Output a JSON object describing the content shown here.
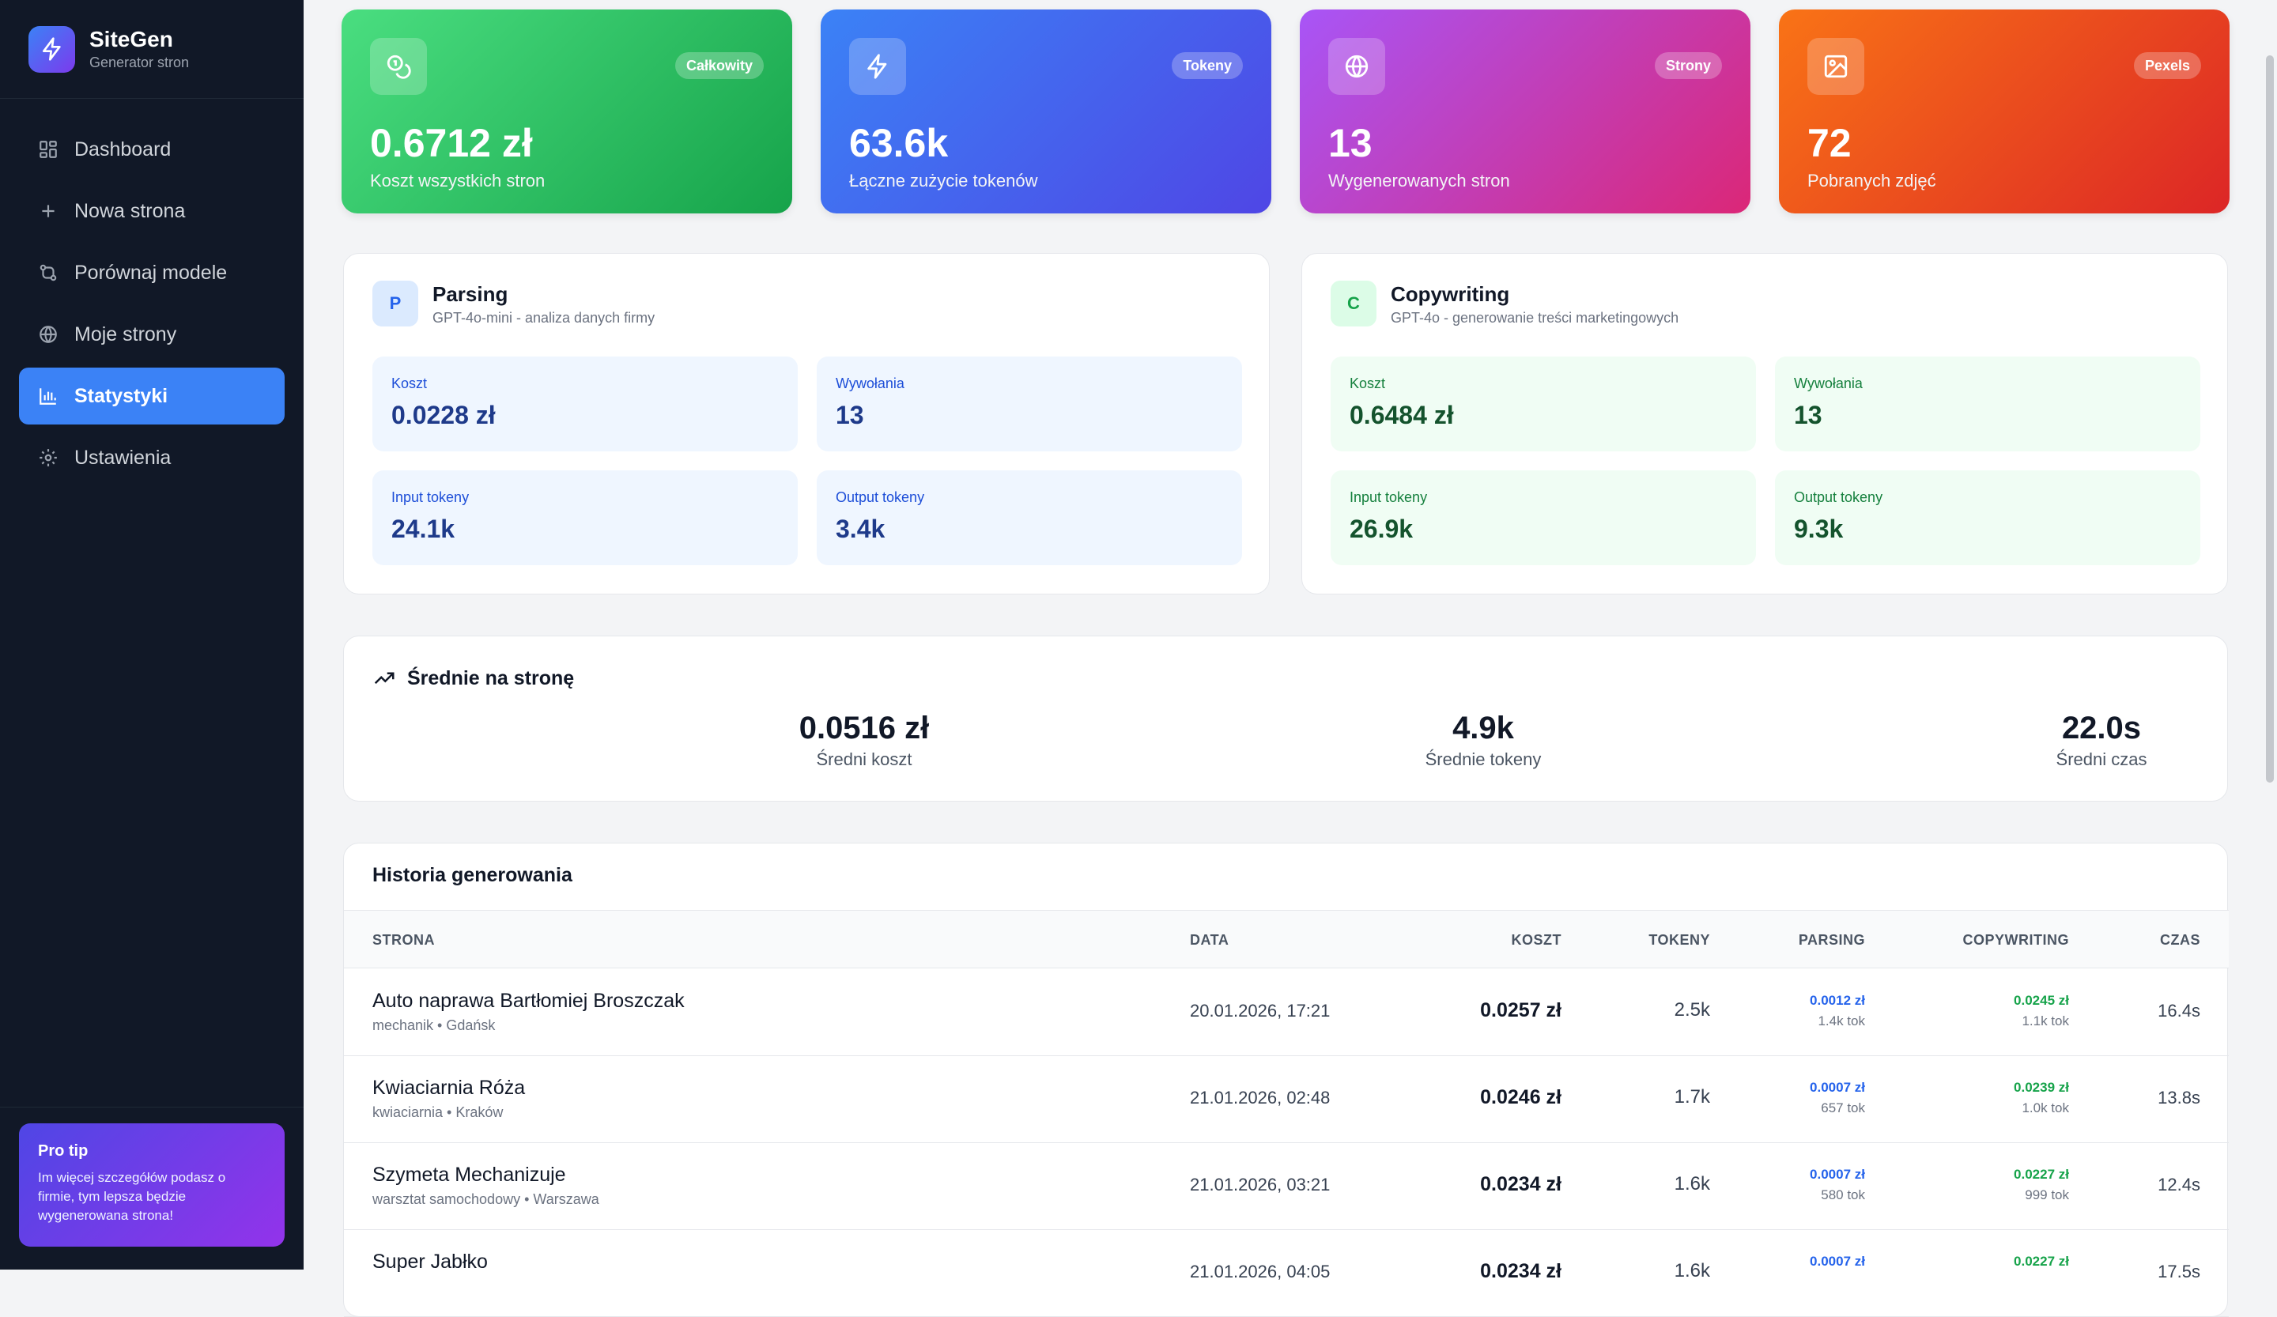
{
  "brand": {
    "name": "SiteGen",
    "subtitle": "Generator stron"
  },
  "nav": {
    "items": [
      {
        "label": "Dashboard",
        "icon": "dashboard-icon"
      },
      {
        "label": "Nowa strona",
        "icon": "plus-icon"
      },
      {
        "label": "Porównaj modele",
        "icon": "compare-icon"
      },
      {
        "label": "Moje strony",
        "icon": "globe-icon"
      },
      {
        "label": "Statystyki",
        "icon": "chart-icon",
        "active": true
      },
      {
        "label": "Ustawienia",
        "icon": "gear-icon"
      }
    ]
  },
  "tip": {
    "title": "Pro tip",
    "text": "Im więcej szczegółów podasz o firmie, tym lepsza będzie wygenerowana strona!"
  },
  "stats": [
    {
      "badge": "Całkowity",
      "value": "0.6712 zł",
      "label": "Koszt wszystkich stron",
      "icon": "coins-icon",
      "gradient": [
        "#4ade80",
        "#16a34a"
      ]
    },
    {
      "badge": "Tokeny",
      "value": "63.6k",
      "label": "Łączne zużycie tokenów",
      "icon": "lightning-icon",
      "gradient": [
        "#3b82f6",
        "#4f46e5"
      ]
    },
    {
      "badge": "Strony",
      "value": "13",
      "label": "Wygenerowanych stron",
      "icon": "globe-icon",
      "gradient": [
        "#a855f7",
        "#db2777"
      ]
    },
    {
      "badge": "Pexels",
      "value": "72",
      "label": "Pobranych zdjęć",
      "icon": "image-icon",
      "gradient": [
        "#f97316",
        "#dc2626"
      ]
    }
  ],
  "models": [
    {
      "initial": "P",
      "name": "Parsing",
      "desc": "GPT-4o-mini - analiza danych firmy",
      "metrics": [
        {
          "label": "Koszt",
          "value": "0.0228 zł"
        },
        {
          "label": "Wywołania",
          "value": "13"
        },
        {
          "label": "Input tokeny",
          "value": "24.1k"
        },
        {
          "label": "Output tokeny",
          "value": "3.4k"
        }
      ]
    },
    {
      "initial": "C",
      "name": "Copywriting",
      "desc": "GPT-4o - generowanie treści marketingowych",
      "metrics": [
        {
          "label": "Koszt",
          "value": "0.6484 zł"
        },
        {
          "label": "Wywołania",
          "value": "13"
        },
        {
          "label": "Input tokeny",
          "value": "26.9k"
        },
        {
          "label": "Output tokeny",
          "value": "9.3k"
        }
      ]
    }
  ],
  "averages": {
    "title": "Średnie na stronę",
    "items": [
      {
        "value": "0.0516 zł",
        "label": "Średni koszt"
      },
      {
        "value": "4.9k",
        "label": "Średnie tokeny"
      },
      {
        "value": "22.0s",
        "label": "Średni czas"
      }
    ]
  },
  "history": {
    "title": "Historia generowania",
    "columns": [
      "STRONA",
      "DATA",
      "KOSZT",
      "TOKENY",
      "PARSING",
      "COPYWRITING",
      "CZAS"
    ],
    "rows": [
      {
        "name": "Auto naprawa Bartłomiej Broszczak",
        "meta": "mechanik • Gdańsk",
        "date": "20.01.2026, 17:21",
        "cost": "0.0257 zł",
        "tokens": "2.5k",
        "parsing_cost": "0.0012 zł",
        "parsing_tok": "1.4k tok",
        "copy_cost": "0.0245 zł",
        "copy_tok": "1.1k tok",
        "time": "16.4s"
      },
      {
        "name": "Kwiaciarnia Róża",
        "meta": "kwiaciarnia • Kraków",
        "date": "21.01.2026, 02:48",
        "cost": "0.0246 zł",
        "tokens": "1.7k",
        "parsing_cost": "0.0007 zł",
        "parsing_tok": "657 tok",
        "copy_cost": "0.0239 zł",
        "copy_tok": "1.0k tok",
        "time": "13.8s"
      },
      {
        "name": "Szymeta Mechanizuje",
        "meta": "warsztat samochodowy • Warszawa",
        "date": "21.01.2026, 03:21",
        "cost": "0.0234 zł",
        "tokens": "1.6k",
        "parsing_cost": "0.0007 zł",
        "parsing_tok": "580 tok",
        "copy_cost": "0.0227 zł",
        "copy_tok": "999 tok",
        "time": "12.4s"
      },
      {
        "name": "Super Jabłko",
        "meta": "",
        "date": "21.01.2026, 04:05",
        "cost": "0.0234 zł",
        "tokens": "1.6k",
        "parsing_cost": "0.0007 zł",
        "parsing_tok": "",
        "copy_cost": "0.0227 zł",
        "copy_tok": "",
        "time": "17.5s"
      }
    ]
  },
  "colors": {
    "accent": "#3b82f6",
    "sidebar": "#111827",
    "parsing_bg": "#eff6ff",
    "parsing_text": "#1e3a8a",
    "copy_bg": "#f0fdf4",
    "copy_text": "#14532d"
  }
}
